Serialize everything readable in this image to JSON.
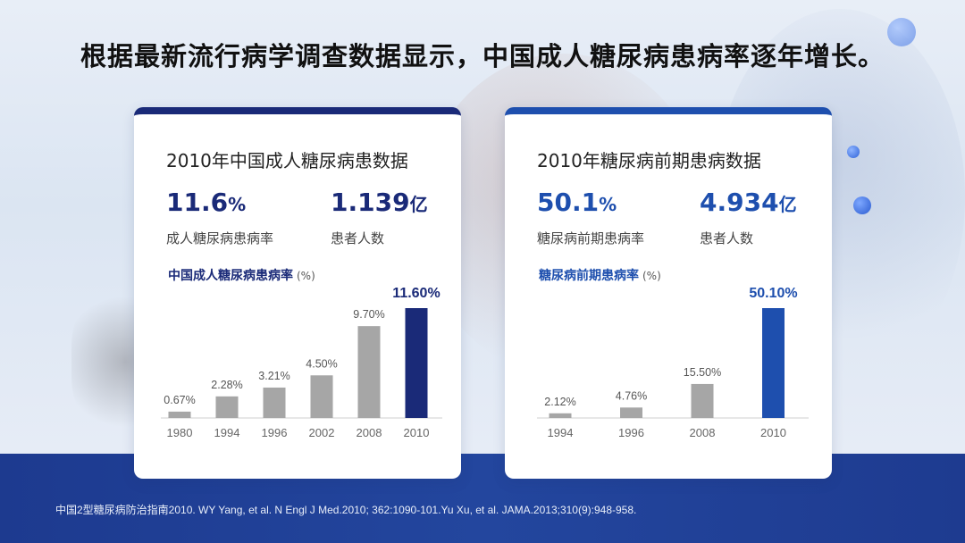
{
  "headline": "根据最新流行病学调查数据显示，中国成人糖尿病患病率逐年增长。",
  "left_card": {
    "title": "2010年中国成人糖尿病患数据",
    "stat1_value": "11.6",
    "stat1_unit": "%",
    "stat1_label": "成人糖尿病患病率",
    "stat2_value": "1.139",
    "stat2_unit": "亿",
    "stat2_label": "患者人数",
    "chart_title": "中国成人糖尿病患病率",
    "chart_unit": "(%)"
  },
  "right_card": {
    "title": "2010年糖尿病前期患病数据",
    "stat1_value": "50.1",
    "stat1_unit": "%",
    "stat1_label": "糖尿病前期患病率",
    "stat2_value": "4.934",
    "stat2_unit": "亿",
    "stat2_label": "患者人数",
    "chart_title": "糖尿病前期患病率",
    "chart_unit": "(%)"
  },
  "footnote": "中国2型糖尿病防治指南2010.  WY Yang, et al. N Engl J Med.2010; 362:1090-101.Yu  Xu, et al. JAMA.2013;310(9):948-958.",
  "colors": {
    "left_accent": "#1a2a78",
    "right_accent": "#1e4fae",
    "bar_gray": "#a6a6a6"
  },
  "chart_data": [
    {
      "type": "bar",
      "title": "中国成人糖尿病患病率",
      "ylabel": "(%)",
      "categories": [
        "1980",
        "1994",
        "1996",
        "2002",
        "2008",
        "2010"
      ],
      "values": [
        0.67,
        2.28,
        3.21,
        4.5,
        9.7,
        11.6
      ],
      "labels": [
        "0.67%",
        "2.28%",
        "3.21%",
        "4.50%",
        "9.70%",
        "11.60%"
      ],
      "ylim": [
        0,
        11.6
      ],
      "highlight_index": 5,
      "grid": false
    },
    {
      "type": "bar",
      "title": "糖尿病前期患病率",
      "ylabel": "(%)",
      "categories": [
        "1994",
        "1996",
        "2008",
        "2010"
      ],
      "values": [
        2.12,
        4.76,
        15.5,
        50.1
      ],
      "labels": [
        "2.12%",
        "4.76%",
        "15.50%",
        "50.10%"
      ],
      "ylim": [
        0,
        50.1
      ],
      "highlight_index": 3,
      "grid": false
    }
  ]
}
